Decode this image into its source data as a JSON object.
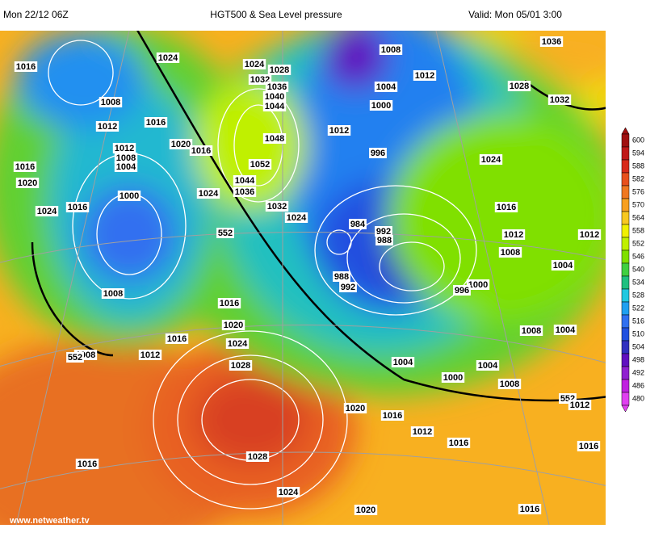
{
  "header": {
    "run": "Mon 22/12 06Z",
    "title": "HGT500 & Sea Level pressure",
    "valid": "Valid: Mon 05/01 3:00"
  },
  "colorbar": {
    "labels": [
      600,
      594,
      588,
      582,
      576,
      570,
      564,
      558,
      552,
      546,
      540,
      534,
      528,
      522,
      516,
      510,
      504,
      498,
      492,
      486,
      480
    ],
    "colors": [
      "#a01010",
      "#c01818",
      "#d82a1a",
      "#e8501c",
      "#f07820",
      "#f8a020",
      "#f8c820",
      "#f0f000",
      "#c0f000",
      "#80e000",
      "#40d040",
      "#20c080",
      "#20c8e0",
      "#20a0f0",
      "#3070f0",
      "#2050e0",
      "#3030c0",
      "#6010c0",
      "#9020d0",
      "#c020e0",
      "#e040f0"
    ]
  },
  "isobar_labels": [
    1036,
    1008,
    1012,
    1016,
    1024,
    1024,
    1028,
    1032,
    1036,
    1040,
    1044,
    1004,
    1028,
    1032,
    1000,
    1008,
    1012,
    1016,
    1012,
    1020,
    1016,
    1048,
    996,
    1012,
    1008,
    1004,
    1016,
    1052,
    1020,
    1024,
    1044,
    1036,
    1024,
    1000,
    1016,
    1024,
    1032,
    1024,
    1016,
    984,
    992,
    988,
    552,
    1012,
    1012,
    1008,
    1004,
    988,
    992,
    1000,
    996,
    1008,
    1016,
    1016,
    1020,
    1024,
    1012,
    1008,
    552,
    1008,
    1004,
    1028,
    1004,
    1000,
    1004,
    1008,
    1020,
    1016,
    552,
    1012,
    1012,
    1016,
    1016,
    1028,
    1016,
    1024,
    1020,
    1016
  ],
  "footer": "www.netweather.tv"
}
